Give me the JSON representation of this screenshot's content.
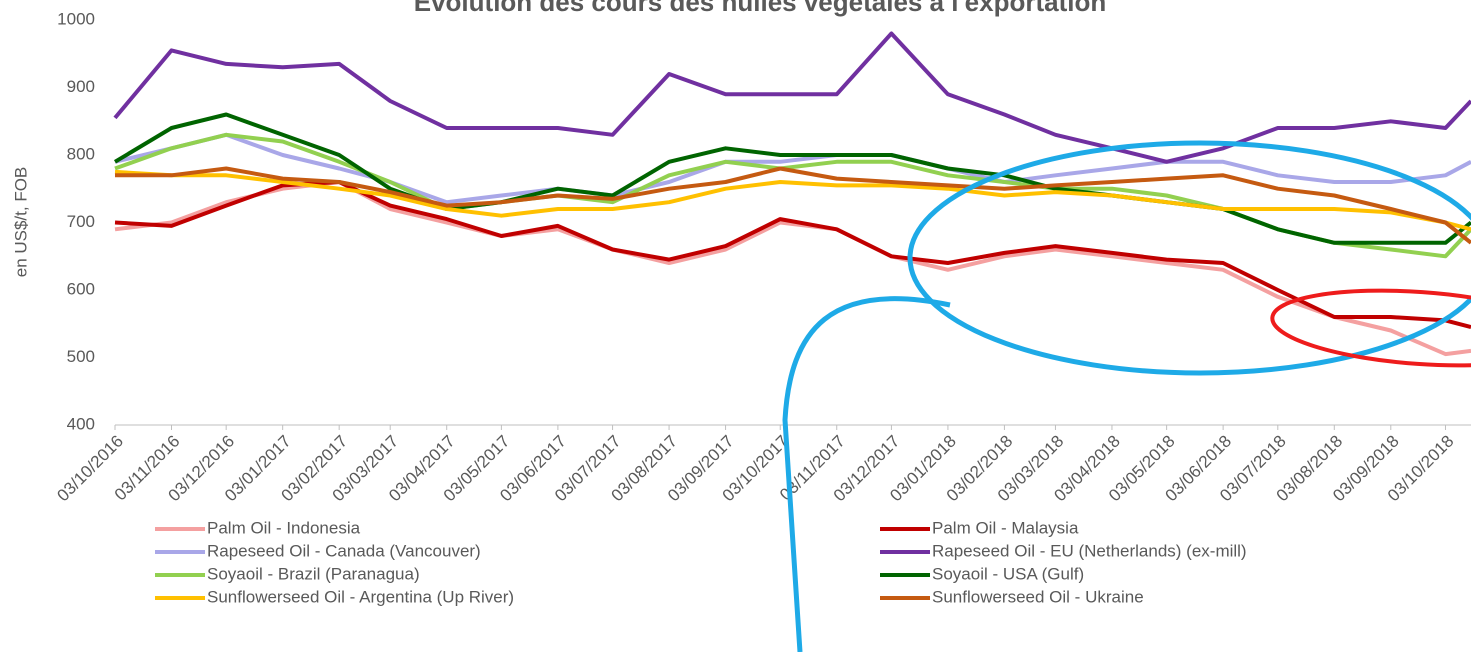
{
  "chart_data": {
    "type": "line",
    "title": "Évolution des cours des huiles végétales à l'exportation",
    "y_label": "en US$/t, FOB",
    "x": [
      "03/10/2016",
      "03/11/2016",
      "03/12/2016",
      "03/01/2017",
      "03/02/2017",
      "03/03/2017",
      "03/04/2017",
      "03/05/2017",
      "03/06/2017",
      "03/07/2017",
      "03/08/2017",
      "03/09/2017",
      "03/10/2017",
      "03/11/2017",
      "03/12/2017",
      "03/01/2018",
      "03/02/2018",
      "03/03/2018",
      "03/04/2018",
      "03/05/2018",
      "03/06/2018",
      "03/07/2018",
      "03/08/2018",
      "03/09/2018",
      "03/10/2018",
      "17/10/2018"
    ],
    "xlim": [
      "03/10/2016",
      "17/10/2018"
    ],
    "xticks": [
      "03/10/2016",
      "03/11/2016",
      "03/12/2016",
      "03/01/2017",
      "03/02/2017",
      "03/03/2017",
      "03/04/2017",
      "03/05/2017",
      "03/06/2017",
      "03/07/2017",
      "03/08/2017",
      "03/09/2017",
      "03/10/2017",
      "03/11/2017",
      "03/12/2017",
      "03/01/2018",
      "03/02/2018",
      "03/03/2018",
      "03/04/2018",
      "03/05/2018",
      "03/06/2018",
      "03/07/2018",
      "03/08/2018",
      "03/09/2018",
      "03/10/2018"
    ],
    "ylim": [
      400,
      1000
    ],
    "yticks": [
      400,
      500,
      600,
      700,
      800,
      900,
      1000
    ],
    "grid": false,
    "legend": "bottom",
    "series": [
      {
        "name": "Palm Oil - Indonesia",
        "color": "#f4a0a0",
        "values": [
          690,
          700,
          730,
          750,
          760,
          720,
          700,
          680,
          690,
          660,
          640,
          660,
          700,
          690,
          650,
          630,
          650,
          660,
          650,
          640,
          630,
          590,
          560,
          540,
          505,
          510
        ]
      },
      {
        "name": "Palm Oil - Malaysia",
        "color": "#c00000",
        "values": [
          700,
          695,
          725,
          755,
          760,
          725,
          705,
          680,
          695,
          660,
          645,
          665,
          705,
          690,
          650,
          640,
          655,
          665,
          655,
          645,
          640,
          600,
          560,
          560,
          555,
          545
        ]
      },
      {
        "name": "Rapeseed Oil - Canada (Vancouver)",
        "color": "#a9a7e8",
        "values": [
          790,
          810,
          830,
          800,
          780,
          760,
          730,
          740,
          750,
          740,
          760,
          790,
          790,
          800,
          800,
          780,
          760,
          770,
          780,
          790,
          790,
          770,
          760,
          760,
          770,
          790
        ]
      },
      {
        "name": "Rapeseed Oil - EU (Netherlands) (ex-mill)",
        "color": "#7030a0",
        "values": [
          855,
          955,
          935,
          930,
          935,
          880,
          840,
          840,
          840,
          830,
          920,
          890,
          890,
          890,
          980,
          890,
          860,
          830,
          810,
          790,
          810,
          840,
          840,
          850,
          840,
          880
        ]
      },
      {
        "name": "Soyaoil - Brazil (Paranagua)",
        "color": "#92d050",
        "values": [
          780,
          810,
          830,
          820,
          790,
          760,
          720,
          730,
          740,
          730,
          770,
          790,
          780,
          790,
          790,
          770,
          760,
          750,
          750,
          740,
          720,
          690,
          670,
          660,
          650,
          690
        ]
      },
      {
        "name": "Soyaoil - USA (Gulf)",
        "color": "#006400",
        "values": [
          790,
          840,
          860,
          830,
          800,
          750,
          720,
          730,
          750,
          740,
          790,
          810,
          800,
          800,
          800,
          780,
          770,
          750,
          740,
          730,
          720,
          690,
          670,
          670,
          670,
          700
        ]
      },
      {
        "name": "Sunflowerseed Oil - Argentina (Up River)",
        "color": "#ffc000",
        "values": [
          775,
          770,
          770,
          760,
          750,
          740,
          720,
          710,
          720,
          720,
          730,
          750,
          760,
          755,
          755,
          750,
          740,
          745,
          740,
          730,
          720,
          720,
          720,
          715,
          700,
          690
        ]
      },
      {
        "name": "Sunflowerseed Oil - Ukraine",
        "color": "#c55a11",
        "values": [
          770,
          770,
          780,
          765,
          760,
          745,
          725,
          730,
          740,
          735,
          750,
          760,
          780,
          765,
          760,
          755,
          750,
          755,
          760,
          765,
          770,
          750,
          740,
          720,
          700,
          670
        ]
      }
    ]
  }
}
